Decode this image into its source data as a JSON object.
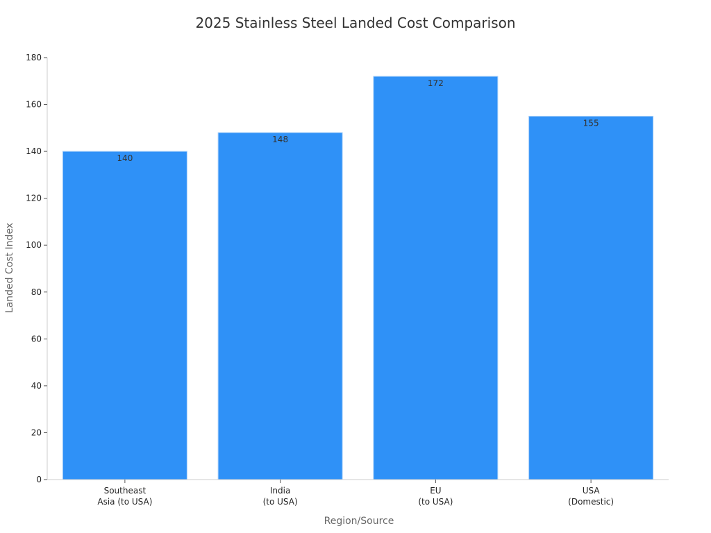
{
  "chart_data": {
    "type": "bar",
    "title": "2025 Stainless Steel Landed Cost Comparison",
    "xlabel": "Region/Source",
    "ylabel": "Landed Cost Index",
    "categories": [
      [
        "Southeast",
        "Asia (to USA)"
      ],
      [
        "India",
        "(to USA)"
      ],
      [
        "EU",
        "(to USA)"
      ],
      [
        "USA",
        "(Domestic)"
      ]
    ],
    "values": [
      140,
      148,
      172,
      155
    ],
    "ylim": [
      0,
      180
    ],
    "yticks": [
      0,
      20,
      40,
      60,
      80,
      100,
      120,
      140,
      160,
      180
    ],
    "grid": false,
    "bar_color": "#2f91f7",
    "bar_edge_color": "#a9d0f9"
  }
}
